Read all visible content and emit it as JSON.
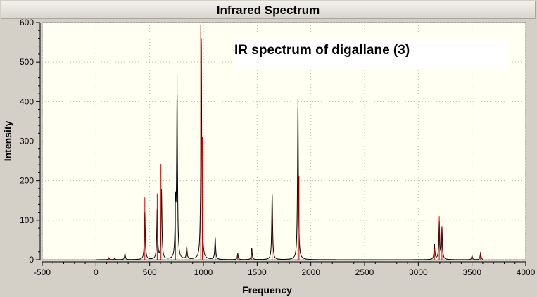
{
  "window": {
    "title": "Infrared Spectrum"
  },
  "colors": {
    "plot_background": "#fffff2",
    "frame": "#d4d0c8",
    "curve": "#000000",
    "stick": "#cc0000",
    "grid": "#bbbbbb"
  },
  "chart_data": {
    "type": "line",
    "title": "Infrared Spectrum",
    "annotation": "IR spectrum of digallane (3)",
    "xlabel": "Frequency",
    "ylabel": "Intensity",
    "xlim": [
      -500,
      4000
    ],
    "ylim": [
      0,
      600
    ],
    "x_ticks": [
      -500,
      0,
      500,
      1000,
      1500,
      2000,
      2500,
      3000,
      3500,
      4000
    ],
    "y_ticks": [
      0,
      100,
      200,
      300,
      400,
      500,
      600
    ],
    "grid": true,
    "spectrum_range": [
      0,
      3600
    ],
    "series": [
      {
        "kind": "sticks",
        "peaks": [
          {
            "x": 120,
            "y": 5
          },
          {
            "x": 175,
            "y": 4
          },
          {
            "x": 270,
            "y": 15
          },
          {
            "x": 455,
            "y": 158
          },
          {
            "x": 570,
            "y": 168
          },
          {
            "x": 605,
            "y": 242
          },
          {
            "x": 740,
            "y": 150
          },
          {
            "x": 755,
            "y": 468
          },
          {
            "x": 845,
            "y": 28
          },
          {
            "x": 975,
            "y": 595
          },
          {
            "x": 990,
            "y": 310
          },
          {
            "x": 1110,
            "y": 45
          },
          {
            "x": 1320,
            "y": 13
          },
          {
            "x": 1450,
            "y": 22
          },
          {
            "x": 1640,
            "y": 112
          },
          {
            "x": 1880,
            "y": 408
          },
          {
            "x": 1890,
            "y": 212
          },
          {
            "x": 3150,
            "y": 28
          },
          {
            "x": 3195,
            "y": 110
          },
          {
            "x": 3220,
            "y": 85
          },
          {
            "x": 3500,
            "y": 10
          },
          {
            "x": 3580,
            "y": 16
          }
        ]
      },
      {
        "kind": "curve",
        "peaks": [
          {
            "x": 120,
            "y": 5
          },
          {
            "x": 175,
            "y": 4
          },
          {
            "x": 270,
            "y": 15
          },
          {
            "x": 455,
            "y": 120
          },
          {
            "x": 570,
            "y": 125
          },
          {
            "x": 610,
            "y": 175
          },
          {
            "x": 740,
            "y": 128
          },
          {
            "x": 755,
            "y": 405
          },
          {
            "x": 845,
            "y": 30
          },
          {
            "x": 980,
            "y": 560
          },
          {
            "x": 1110,
            "y": 55
          },
          {
            "x": 1320,
            "y": 15
          },
          {
            "x": 1450,
            "y": 28
          },
          {
            "x": 1640,
            "y": 165
          },
          {
            "x": 1880,
            "y": 385
          },
          {
            "x": 3150,
            "y": 38
          },
          {
            "x": 3195,
            "y": 95
          },
          {
            "x": 3220,
            "y": 80
          },
          {
            "x": 3500,
            "y": 10
          },
          {
            "x": 3580,
            "y": 18
          }
        ]
      }
    ]
  }
}
